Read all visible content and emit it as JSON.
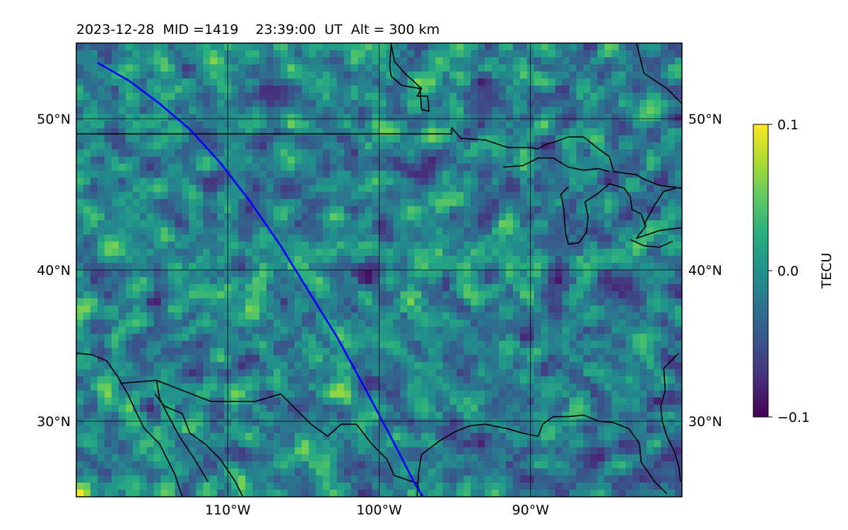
{
  "title": "2023-12-28  MID =1419    23:39:00  UT  Alt = 300 km",
  "map": {
    "lon_range": [
      -120,
      -80
    ],
    "lat_range": [
      25,
      55
    ],
    "lon_ticks": [
      {
        "value": -110,
        "label": "110°W"
      },
      {
        "value": -100,
        "label": "100°W"
      },
      {
        "value": -90,
        "label": "90°W"
      }
    ],
    "lat_ticks": [
      {
        "value": 50,
        "label": "50°N"
      },
      {
        "value": 40,
        "label": "40°N"
      },
      {
        "value": 30,
        "label": "30°N"
      }
    ],
    "gridlines": true,
    "field": "differential TEC (noisy grid, mostly near zero)"
  },
  "colorbar": {
    "label": "TECU",
    "colormap": "viridis",
    "min": -0.1,
    "max": 0.1,
    "ticks": [
      {
        "value": 0.1,
        "label": "0.1"
      },
      {
        "value": 0.0,
        "label": "0.0"
      },
      {
        "value": -0.1,
        "label": "−0.1"
      }
    ]
  },
  "track": {
    "color": "#0000ff",
    "points": [
      [
        -118.6,
        53.7
      ],
      [
        -116.5,
        52.5
      ],
      [
        -114.5,
        51.0
      ],
      [
        -112.5,
        49.3
      ],
      [
        -110.5,
        47.1
      ],
      [
        -108.5,
        44.5
      ],
      [
        -106.5,
        41.6
      ],
      [
        -104.6,
        38.5
      ],
      [
        -102.8,
        35.6
      ],
      [
        -101.0,
        32.3
      ],
      [
        -99.3,
        29.1
      ],
      [
        -97.6,
        25.8
      ],
      [
        -97.1,
        25.0
      ]
    ]
  },
  "coastlines": [
    [
      [
        -120,
        49
      ],
      [
        -95.2,
        49
      ],
      [
        -95.2,
        49.4
      ],
      [
        -94.6,
        48.7
      ],
      [
        -93,
        48.6
      ],
      [
        -91.5,
        48.1
      ],
      [
        -90,
        48.1
      ],
      [
        -89.5,
        48
      ],
      [
        -89,
        48.3
      ],
      [
        -88.3,
        48.5
      ],
      [
        -87.5,
        48.8
      ],
      [
        -86.5,
        48.8
      ],
      [
        -85.5,
        48
      ],
      [
        -84.8,
        47.5
      ],
      [
        -84.5,
        46.5
      ],
      [
        -83,
        46.3
      ],
      [
        -82.5,
        46
      ],
      [
        -81.5,
        45.6
      ],
      [
        -80,
        45.4
      ]
    ],
    [
      [
        -91.8,
        46.8
      ],
      [
        -90.5,
        46.9
      ],
      [
        -89.5,
        47.4
      ],
      [
        -88.5,
        47.4
      ],
      [
        -87.5,
        46.8
      ],
      [
        -86.5,
        46.6
      ],
      [
        -85.5,
        46.7
      ],
      [
        -84.8,
        46.5
      ]
    ],
    [
      [
        -87.5,
        45.5
      ],
      [
        -88,
        45
      ],
      [
        -87.8,
        44
      ],
      [
        -87.7,
        42.5
      ],
      [
        -87.5,
        41.7
      ],
      [
        -86.8,
        41.8
      ],
      [
        -86.3,
        42.5
      ],
      [
        -86.2,
        43.5
      ],
      [
        -86.4,
        44.5
      ],
      [
        -85.5,
        45.1
      ],
      [
        -84.8,
        45.7
      ],
      [
        -83.8,
        45.4
      ],
      [
        -83.4,
        44.8
      ],
      [
        -83.3,
        44
      ],
      [
        -82.7,
        43.7
      ],
      [
        -82.4,
        42.9
      ],
      [
        -83,
        42.1
      ],
      [
        -81.5,
        42.6
      ],
      [
        -80,
        42.8
      ]
    ],
    [
      [
        -82.5,
        43
      ],
      [
        -81.8,
        44.3
      ],
      [
        -81.2,
        45.2
      ],
      [
        -80.4,
        45.4
      ]
    ],
    [
      [
        -83.4,
        42
      ],
      [
        -82.5,
        41.6
      ],
      [
        -81.5,
        41.5
      ],
      [
        -80.6,
        41.9
      ]
    ],
    [
      [
        -120,
        34.5
      ],
      [
        -119,
        34.4
      ],
      [
        -118,
        34
      ],
      [
        -117.3,
        33
      ],
      [
        -116.6,
        31.8
      ],
      [
        -116,
        30.5
      ],
      [
        -115.5,
        29.5
      ],
      [
        -114.5,
        28.5
      ],
      [
        -114,
        27.5
      ],
      [
        -113.5,
        26.5
      ],
      [
        -113,
        25
      ]
    ],
    [
      [
        -117.1,
        32.5
      ],
      [
        -114.7,
        32.7
      ],
      [
        -111.1,
        31.3
      ],
      [
        -108.2,
        31.3
      ],
      [
        -106.5,
        31.8
      ],
      [
        -105.5,
        30.8
      ],
      [
        -104.5,
        29.8
      ],
      [
        -103.4,
        29
      ],
      [
        -102.5,
        29.8
      ],
      [
        -101.5,
        29.8
      ],
      [
        -100.5,
        28.5
      ],
      [
        -99.5,
        27.5
      ],
      [
        -99,
        26.4
      ],
      [
        -97.5,
        25.9
      ],
      [
        -97.2,
        25
      ]
    ],
    [
      [
        -114.8,
        31.8
      ],
      [
        -114.2,
        31
      ],
      [
        -113,
        30.5
      ],
      [
        -112.5,
        29.2
      ],
      [
        -111.5,
        28.5
      ],
      [
        -110.5,
        27.5
      ],
      [
        -109.5,
        26
      ],
      [
        -109,
        25
      ]
    ],
    [
      [
        -114.7,
        32.7
      ],
      [
        -114.5,
        31.5
      ],
      [
        -114,
        30.5
      ],
      [
        -113.2,
        29
      ],
      [
        -112.2,
        27.5
      ],
      [
        -111.3,
        26
      ]
    ],
    [
      [
        -97.5,
        25
      ],
      [
        -97.4,
        26.5
      ],
      [
        -97.2,
        27.8
      ],
      [
        -96,
        28.7
      ],
      [
        -95,
        29.3
      ],
      [
        -94,
        29.7
      ],
      [
        -93,
        29.8
      ],
      [
        -91.5,
        29.5
      ],
      [
        -90.5,
        29.2
      ],
      [
        -89.5,
        29
      ],
      [
        -89.2,
        29.8
      ],
      [
        -88.5,
        30.3
      ],
      [
        -87.5,
        30.3
      ],
      [
        -86.5,
        30.4
      ],
      [
        -85.5,
        30
      ],
      [
        -84.5,
        29.9
      ],
      [
        -83.5,
        29.5
      ],
      [
        -82.8,
        28.5
      ],
      [
        -82.7,
        27.3
      ],
      [
        -81.8,
        26
      ],
      [
        -81,
        25.2
      ]
    ],
    [
      [
        -80.2,
        34.5
      ],
      [
        -81.2,
        33.5
      ],
      [
        -81.1,
        32
      ],
      [
        -81.4,
        31
      ],
      [
        -81.3,
        30
      ],
      [
        -81,
        29
      ],
      [
        -80.5,
        28
      ],
      [
        -80.2,
        27
      ],
      [
        -80.1,
        26
      ]
    ],
    [
      [
        -99.2,
        55
      ],
      [
        -99,
        53.8
      ],
      [
        -98.3,
        53
      ],
      [
        -97.2,
        52
      ],
      [
        -97.5,
        51.5
      ],
      [
        -96.8,
        51.5
      ],
      [
        -96.7,
        50.5
      ],
      [
        -97.2,
        50.6
      ],
      [
        -97.3,
        52
      ],
      [
        -98.5,
        52.2
      ],
      [
        -99.2,
        52.8
      ],
      [
        -99.3,
        53.5
      ],
      [
        -99.2,
        55
      ]
    ],
    [
      [
        -83,
        55
      ],
      [
        -82.5,
        53
      ],
      [
        -81,
        52
      ],
      [
        -80,
        51
      ]
    ]
  ]
}
